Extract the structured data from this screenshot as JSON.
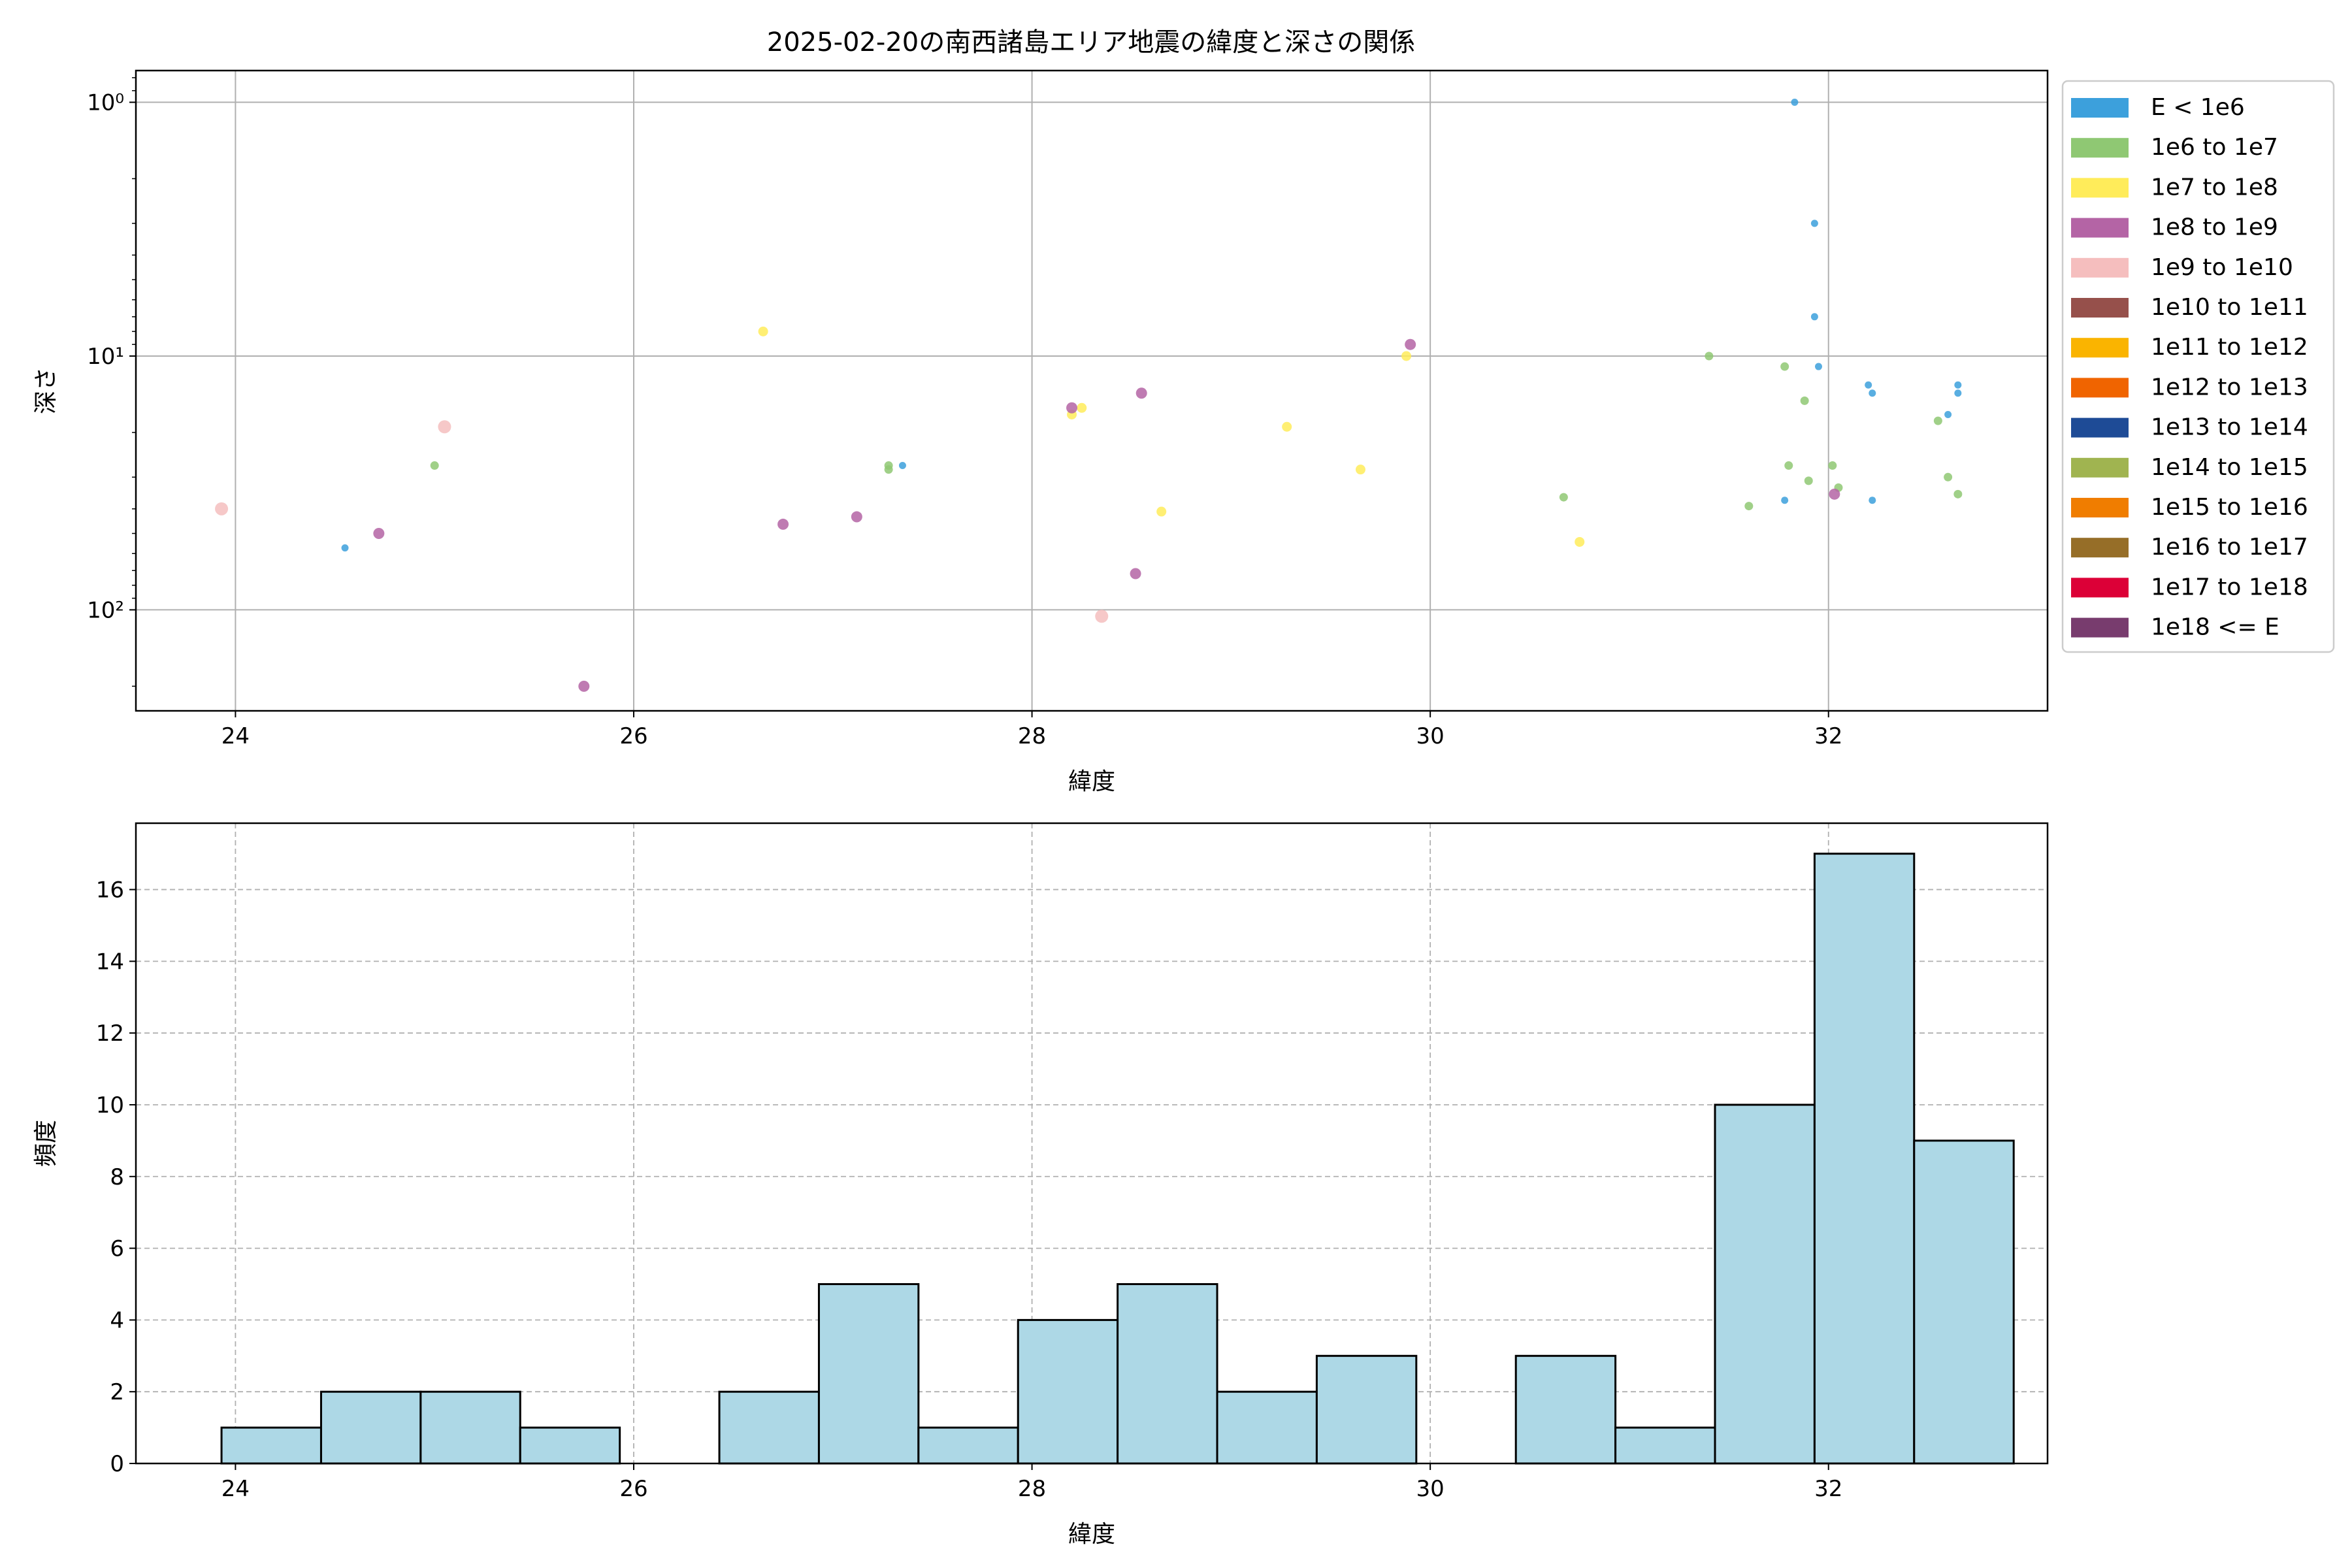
{
  "figure": {
    "title": "2025-02-20の南西諸島エリア地震の緯度と深さの関係"
  },
  "chart_data": [
    {
      "type": "scatter",
      "title": "2025-02-20の南西諸島エリア地震の緯度と深さの関係",
      "xlabel": "緯度",
      "ylabel": "深さ",
      "xlim": [
        23.5,
        33.1
      ],
      "ylim": [
        250,
        0.75
      ],
      "y_scale": "log",
      "y_inverted": true,
      "grid": true,
      "legend_position": "outside-right",
      "x_ticks": [
        24,
        26,
        28,
        30,
        32
      ],
      "x_tick_labels": [
        "24",
        "26",
        "28",
        "30",
        "32"
      ],
      "y_ticks": [
        1,
        10,
        100
      ],
      "y_tick_labels": [
        "10⁰",
        "10¹",
        "10²"
      ],
      "legend": [
        {
          "label": "E < 1e6",
          "color": "#3ca0dc"
        },
        {
          "label": "1e6 to 1e7",
          "color": "#8fc873"
        },
        {
          "label": "1e7 to 1e8",
          "color": "#ffec5a"
        },
        {
          "label": "1e8 to 1e9",
          "color": "#b464a5"
        },
        {
          "label": "1e9 to 1e10",
          "color": "#f5bebe"
        },
        {
          "label": "1e10 to 1e11",
          "color": "#96504b"
        },
        {
          "label": "1e11 to 1e12",
          "color": "#fab400"
        },
        {
          "label": "1e12 to 1e13",
          "color": "#f06400"
        },
        {
          "label": "1e13 to 1e14",
          "color": "#1e4b96"
        },
        {
          "label": "1e14 to 1e15",
          "color": "#a0b450"
        },
        {
          "label": "1e15 to 1e16",
          "color": "#f07d00"
        },
        {
          "label": "1e16 to 1e17",
          "color": "#966e28"
        },
        {
          "label": "1e17 to 1e18",
          "color": "#dc0037"
        },
        {
          "label": "1e18 <= E",
          "color": "#783c6e"
        }
      ],
      "series": [
        {
          "category": 0,
          "points": [
            [
              24.55,
              57
            ],
            [
              27.35,
              27
            ],
            [
              31.83,
              1
            ],
            [
              31.93,
              3
            ],
            [
              31.93,
              7
            ],
            [
              31.95,
              11
            ],
            [
              31.78,
              37
            ],
            [
              32.2,
              13
            ],
            [
              32.22,
              14
            ],
            [
              32.22,
              37
            ],
            [
              32.6,
              17
            ],
            [
              32.65,
              13
            ],
            [
              32.65,
              14
            ]
          ]
        },
        {
          "category": 1,
          "points": [
            [
              25.0,
              27
            ],
            [
              27.28,
              27
            ],
            [
              27.28,
              28
            ],
            [
              30.67,
              36
            ],
            [
              31.4,
              10
            ],
            [
              31.6,
              39
            ],
            [
              31.78,
              11
            ],
            [
              31.8,
              27
            ],
            [
              31.88,
              15
            ],
            [
              31.9,
              31
            ],
            [
              32.02,
              27
            ],
            [
              32.05,
              33
            ],
            [
              32.55,
              18
            ],
            [
              32.6,
              30
            ],
            [
              32.65,
              35
            ]
          ]
        },
        {
          "category": 2,
          "points": [
            [
              26.65,
              8
            ],
            [
              28.2,
              17
            ],
            [
              28.25,
              16
            ],
            [
              28.65,
              41
            ],
            [
              29.28,
              19
            ],
            [
              29.65,
              28
            ],
            [
              29.88,
              10
            ],
            [
              30.75,
              54
            ]
          ]
        },
        {
          "category": 3,
          "points": [
            [
              24.72,
              50
            ],
            [
              25.75,
              200
            ],
            [
              26.75,
              46
            ],
            [
              27.12,
              43
            ],
            [
              28.2,
              16
            ],
            [
              28.52,
              72
            ],
            [
              28.55,
              14
            ],
            [
              29.9,
              9
            ],
            [
              32.03,
              35
            ]
          ]
        },
        {
          "category": 4,
          "points": [
            [
              23.93,
              40
            ],
            [
              25.05,
              19
            ],
            [
              28.35,
              106
            ]
          ]
        }
      ]
    },
    {
      "type": "bar",
      "subtype": "histogram",
      "xlabel": "緯度",
      "ylabel": "頻度",
      "xlim": [
        23.5,
        33.1
      ],
      "ylim": [
        0,
        17.85
      ],
      "grid": true,
      "bar_color": "#add8e6",
      "x_ticks": [
        24,
        26,
        28,
        30,
        32
      ],
      "x_tick_labels": [
        "24",
        "26",
        "28",
        "30",
        "32"
      ],
      "y_ticks": [
        0,
        2,
        4,
        6,
        8,
        10,
        12,
        14,
        16
      ],
      "y_tick_labels": [
        "0",
        "2",
        "4",
        "6",
        "8",
        "10",
        "12",
        "14",
        "16"
      ],
      "bin_edges": [
        23.93,
        24.43,
        24.93,
        25.43,
        25.93,
        26.43,
        26.93,
        27.43,
        27.93,
        28.43,
        28.93,
        29.43,
        29.93,
        30.43,
        30.93,
        31.43,
        31.93,
        32.43,
        32.93
      ],
      "values": [
        1,
        2,
        2,
        1,
        0,
        2,
        5,
        1,
        4,
        5,
        2,
        3,
        0,
        3,
        1,
        10,
        17,
        9
      ]
    }
  ]
}
